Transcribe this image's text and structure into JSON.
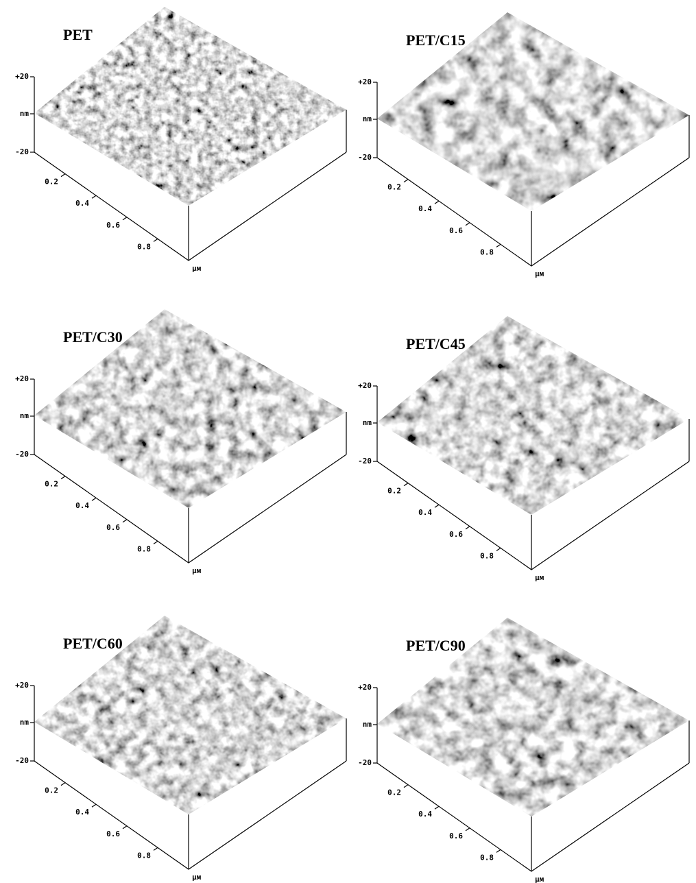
{
  "panels": [
    {
      "label": "PET",
      "z_ticks": [
        "+20",
        "nm",
        "-20"
      ],
      "x_ticks": [
        "0.2",
        "0.4",
        "0.6",
        "0.8"
      ],
      "unit": "μм"
    },
    {
      "label": "PET/C15",
      "z_ticks": [
        "+20",
        "nm",
        "-20"
      ],
      "x_ticks": [
        "0.2",
        "0.4",
        "0.6",
        "0.8"
      ],
      "unit": "μм"
    },
    {
      "label": "PET/C30",
      "z_ticks": [
        "+20",
        "nm",
        "-20"
      ],
      "x_ticks": [
        "0.2",
        "0.4",
        "0.6",
        "0.8"
      ],
      "unit": "μм"
    },
    {
      "label": "PET/C45",
      "z_ticks": [
        "+20",
        "nm",
        "-20"
      ],
      "x_ticks": [
        "0.2",
        "0.4",
        "0.6",
        "0.8"
      ],
      "unit": "μм"
    },
    {
      "label": "PET/C60",
      "z_ticks": [
        "+20",
        "nm",
        "-20"
      ],
      "x_ticks": [
        "0.2",
        "0.4",
        "0.6",
        "0.8"
      ],
      "unit": "μм"
    },
    {
      "label": "PET/C90",
      "z_ticks": [
        "+20",
        "nm",
        "-20"
      ],
      "x_ticks": [
        "0.2",
        "0.4",
        "0.6",
        "0.8"
      ],
      "unit": "μм"
    }
  ]
}
